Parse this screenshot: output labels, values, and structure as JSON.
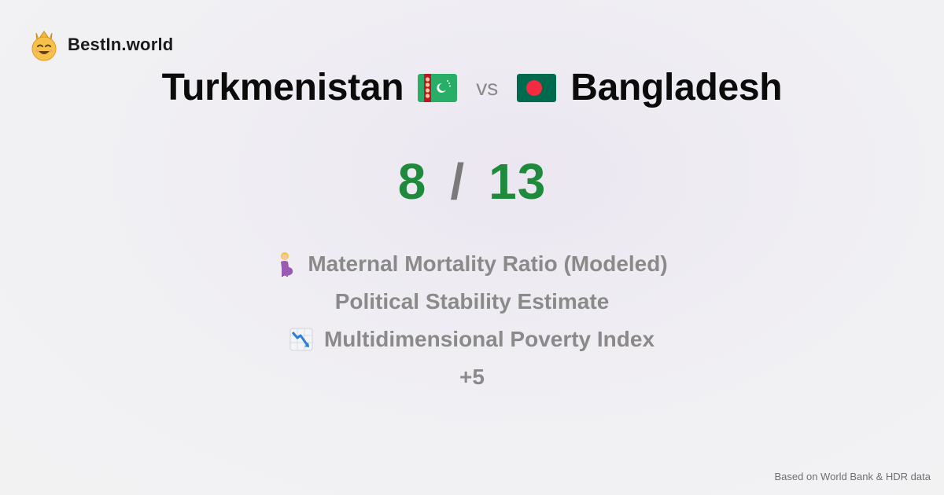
{
  "brand": {
    "name": "BestIn.world",
    "logo_icon": "crowned-smiley-icon"
  },
  "comparison": {
    "left_country": "Turkmenistan",
    "left_flag_icon": "turkmenistan-flag-icon",
    "vs_label": "vs",
    "right_country": "Bangladesh",
    "right_flag_icon": "bangladesh-flag-icon"
  },
  "score": {
    "left": "8",
    "separator": "/",
    "right": "13"
  },
  "metrics": [
    {
      "icon": "pregnant-woman-icon",
      "label": "Maternal Mortality Ratio (Modeled)"
    },
    {
      "icon": "",
      "label": "Political Stability Estimate"
    },
    {
      "icon": "chart-decreasing-icon",
      "label": "Multidimensional Poverty Index"
    },
    {
      "icon": "",
      "label": "+5"
    }
  ],
  "footer": {
    "source": "Based on World Bank & HDR data"
  },
  "colors": {
    "score": "#1f8a3c",
    "muted": "#8a8a8a",
    "brand_yellow": "#f6b93b"
  }
}
